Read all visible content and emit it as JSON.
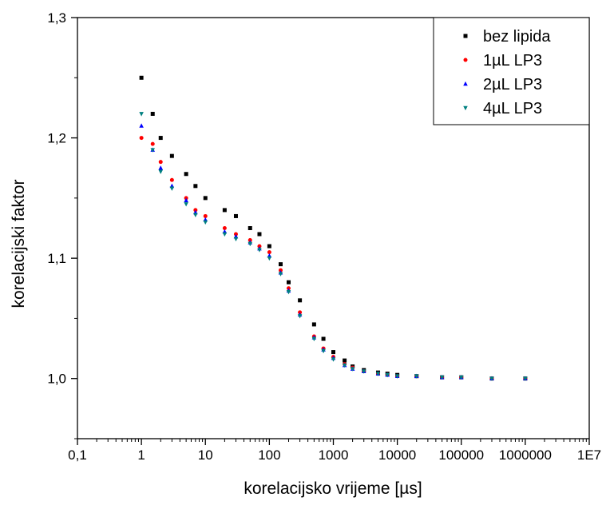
{
  "chart_data": {
    "type": "scatter",
    "title": "",
    "xlabel": "korelacijsko vrijeme [µs]",
    "ylabel": "korelacijski faktor",
    "x_scale": "log",
    "xlim": [
      0.1,
      10000000
    ],
    "ylim": [
      0.95,
      1.3
    ],
    "x_ticks": [
      "0,1",
      "1",
      "10",
      "100",
      "1000",
      "10000",
      "100000",
      "1000000",
      "1E7"
    ],
    "y_ticks": [
      "1,0",
      "1,1",
      "1,2",
      "1,3"
    ],
    "y_tick_values": [
      1.0,
      1.1,
      1.2,
      1.3
    ],
    "grid": false,
    "legend_position": "top-right",
    "series": [
      {
        "name": "bez lipida",
        "color": "#000000",
        "marker": "square",
        "x": [
          1,
          1.5,
          2,
          3,
          5,
          7,
          10,
          20,
          30,
          50,
          70,
          100,
          150,
          200,
          300,
          500,
          700,
          1000,
          1500,
          2000,
          3000,
          5000,
          7000,
          10000,
          20000,
          50000,
          100000,
          300000,
          1000000
        ],
        "y": [
          1.25,
          1.22,
          1.2,
          1.185,
          1.17,
          1.16,
          1.15,
          1.14,
          1.135,
          1.125,
          1.12,
          1.11,
          1.095,
          1.08,
          1.065,
          1.045,
          1.033,
          1.022,
          1.015,
          1.01,
          1.007,
          1.005,
          1.004,
          1.003,
          1.002,
          1.001,
          1.001,
          1.0,
          1.0
        ]
      },
      {
        "name": "1µL LP3",
        "color": "#ff0000",
        "marker": "circle",
        "x": [
          1,
          1.5,
          2,
          3,
          5,
          7,
          10,
          20,
          30,
          50,
          70,
          100,
          150,
          200,
          300,
          500,
          700,
          1000,
          1500,
          2000,
          3000,
          5000,
          7000,
          10000,
          20000,
          50000,
          100000,
          300000,
          1000000
        ],
        "y": [
          1.2,
          1.195,
          1.18,
          1.165,
          1.15,
          1.14,
          1.135,
          1.125,
          1.12,
          1.115,
          1.11,
          1.105,
          1.09,
          1.075,
          1.055,
          1.035,
          1.025,
          1.018,
          1.012,
          1.009,
          1.006,
          1.004,
          1.003,
          1.002,
          1.002,
          1.001,
          1.001,
          1.0,
          1.0
        ]
      },
      {
        "name": "2µL LP3",
        "color": "#0000ff",
        "marker": "triangle-up",
        "x": [
          1,
          1.5,
          2,
          3,
          5,
          7,
          10,
          20,
          30,
          50,
          70,
          100,
          150,
          200,
          300,
          500,
          700,
          1000,
          1500,
          2000,
          3000,
          5000,
          7000,
          10000,
          20000,
          50000,
          100000,
          300000,
          1000000
        ],
        "y": [
          1.21,
          1.19,
          1.175,
          1.16,
          1.148,
          1.138,
          1.132,
          1.122,
          1.118,
          1.113,
          1.108,
          1.102,
          1.088,
          1.073,
          1.053,
          1.034,
          1.024,
          1.017,
          1.011,
          1.008,
          1.006,
          1.004,
          1.003,
          1.002,
          1.002,
          1.001,
          1.001,
          1.0,
          1.0
        ]
      },
      {
        "name": "4µL LP3",
        "color": "#008080",
        "marker": "triangle-down",
        "x": [
          1,
          1.5,
          2,
          3,
          5,
          7,
          10,
          20,
          30,
          50,
          70,
          100,
          150,
          200,
          300,
          500,
          700,
          1000,
          1500,
          2000,
          3000,
          5000,
          7000,
          10000,
          20000,
          50000,
          100000,
          300000,
          1000000
        ],
        "y": [
          1.22,
          1.19,
          1.172,
          1.158,
          1.145,
          1.136,
          1.13,
          1.12,
          1.116,
          1.112,
          1.107,
          1.1,
          1.087,
          1.072,
          1.052,
          1.033,
          1.023,
          1.016,
          1.011,
          1.008,
          1.006,
          1.004,
          1.003,
          1.002,
          1.002,
          1.001,
          1.001,
          1.0,
          1.0
        ]
      }
    ]
  }
}
